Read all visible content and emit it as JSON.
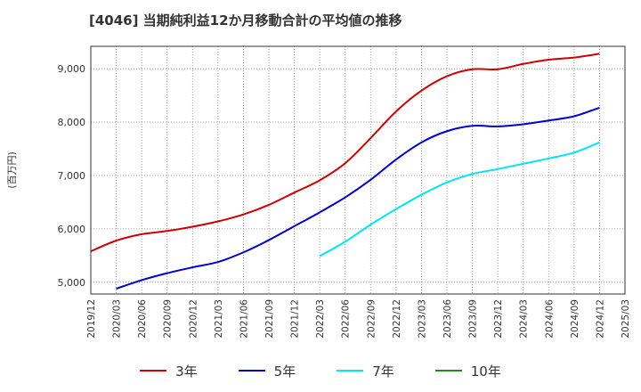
{
  "chart_data": {
    "type": "line",
    "title": "[4046]  当期純利益12か月移動合計の平均値の推移",
    "ylabel": "(百万円)",
    "xlabel": "",
    "ylim": [
      4780,
      9420
    ],
    "yticks": [
      5000,
      6000,
      7000,
      8000,
      9000
    ],
    "ytick_labels": [
      "5,000",
      "6,000",
      "7,000",
      "8,000",
      "9,000"
    ],
    "xtick_labels": [
      "2019/12",
      "2020/03",
      "2020/06",
      "2020/09",
      "2020/12",
      "2021/03",
      "2021/06",
      "2021/09",
      "2021/12",
      "2022/03",
      "2022/06",
      "2022/09",
      "2022/12",
      "2023/03",
      "2023/06",
      "2023/09",
      "2023/12",
      "2024/03",
      "2024/06",
      "2024/09",
      "2024/12",
      "2025/03"
    ],
    "grid": true,
    "legend_position": "bottom",
    "series": [
      {
        "name": "3年",
        "color": "#cc0000",
        "x": [
          "2019/12",
          "2020/03",
          "2020/06",
          "2020/09",
          "2020/12",
          "2021/03",
          "2021/06",
          "2021/09",
          "2021/12",
          "2022/03",
          "2022/06",
          "2022/09",
          "2022/12",
          "2023/03",
          "2023/06",
          "2023/09",
          "2023/12",
          "2024/03",
          "2024/06",
          "2024/09",
          "2024/12"
        ],
        "values": [
          5580,
          5780,
          5900,
          5960,
          6040,
          6140,
          6270,
          6450,
          6680,
          6910,
          7230,
          7700,
          8200,
          8590,
          8860,
          8990,
          8990,
          9090,
          9170,
          9210,
          9280
        ]
      },
      {
        "name": "5年",
        "color": "#0000cc",
        "x": [
          "2020/03",
          "2020/06",
          "2020/09",
          "2020/12",
          "2021/03",
          "2021/06",
          "2021/09",
          "2021/12",
          "2022/03",
          "2022/06",
          "2022/09",
          "2022/12",
          "2023/03",
          "2023/06",
          "2023/09",
          "2023/12",
          "2024/03",
          "2024/06",
          "2024/09",
          "2024/12"
        ],
        "values": [
          4880,
          5040,
          5170,
          5280,
          5380,
          5560,
          5790,
          6050,
          6310,
          6590,
          6920,
          7300,
          7620,
          7830,
          7930,
          7920,
          7960,
          8030,
          8110,
          8270
        ]
      },
      {
        "name": "7年",
        "color": "#00e5ee",
        "x": [
          "2022/03",
          "2022/06",
          "2022/09",
          "2022/12",
          "2023/03",
          "2023/06",
          "2023/09",
          "2023/12",
          "2024/03",
          "2024/06",
          "2024/09",
          "2024/12"
        ],
        "values": [
          5490,
          5760,
          6080,
          6370,
          6640,
          6870,
          7030,
          7120,
          7220,
          7320,
          7430,
          7620
        ]
      },
      {
        "name": "10年",
        "color": "#228b22",
        "x": [],
        "values": []
      }
    ]
  }
}
